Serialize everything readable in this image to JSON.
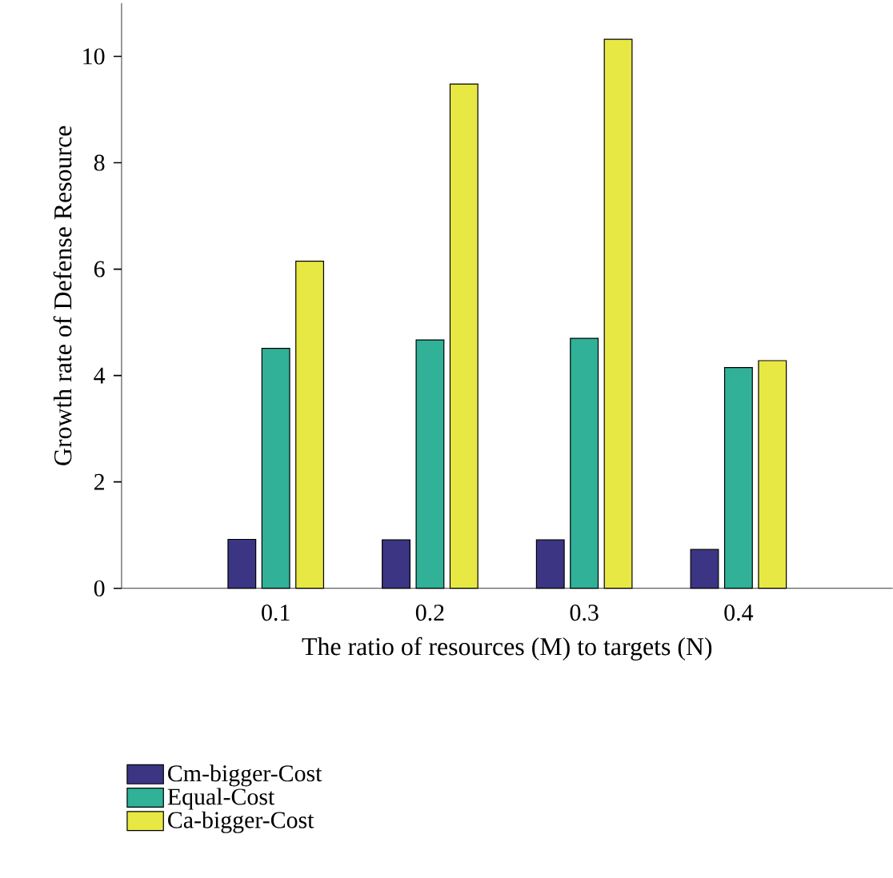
{
  "chart_data": {
    "type": "bar",
    "xlabel": "The ratio of resources (M) to targets (N)",
    "ylabel": "Growth rate of Defense Resource",
    "categories": [
      "0.1",
      "0.2",
      "0.3",
      "0.4"
    ],
    "series": [
      {
        "name": "Cm-bigger-Cost",
        "color": "#3b3584",
        "values": [
          0.92,
          0.91,
          0.91,
          0.73
        ]
      },
      {
        "name": "Equal-Cost",
        "color": "#30b198",
        "values": [
          4.51,
          4.67,
          4.7,
          4.15
        ]
      },
      {
        "name": "Ca-bigger-Cost",
        "color": "#e8e845",
        "values": [
          6.15,
          9.48,
          10.32,
          4.28
        ]
      }
    ],
    "ylim": [
      0,
      11
    ],
    "yticks": [
      0,
      2,
      4,
      6,
      8,
      10
    ],
    "grid": false,
    "legend": "bottom left"
  }
}
